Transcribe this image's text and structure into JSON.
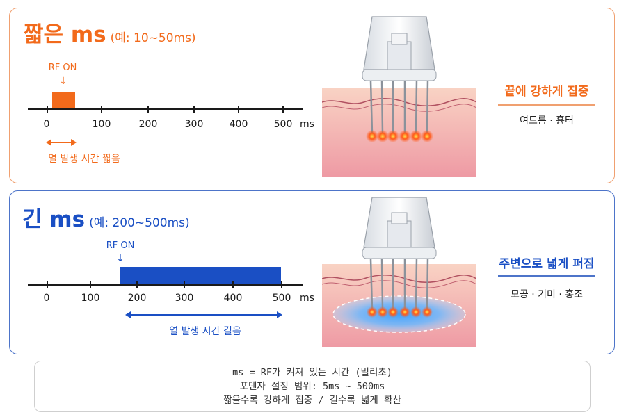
{
  "short": {
    "title": "짧은 ms",
    "subtitle": "(예: 10~50ms)",
    "rf_on": "RF ON",
    "ticks": [
      "0",
      "100",
      "200",
      "300",
      "400",
      "500"
    ],
    "unit": "ms",
    "duration_label": "열 발생 시간 짧음",
    "effect_title": "끝에 강하게 집중",
    "effect_sub": "여드름 · 흉터",
    "accent": "#f26a1b"
  },
  "long": {
    "title": "긴 ms",
    "subtitle": "(예: 200~500ms)",
    "rf_on": "RF ON",
    "ticks": [
      "0",
      "100",
      "200",
      "300",
      "400",
      "500"
    ],
    "unit": "ms",
    "duration_label": "열 발생 시간 길음",
    "effect_title": "주변으로 넓게 퍼짐",
    "effect_sub": "모공 · 기미 · 홍조",
    "accent": "#1a4fc4"
  },
  "footer": {
    "line1": "ms = RF가 켜져 있는 시간 (밀리초)",
    "line2": "포텐자 설정 범위: 5ms ~ 500ms",
    "line3": "짧을수록 강하게 집중 / 길수록 넓게 확산"
  }
}
